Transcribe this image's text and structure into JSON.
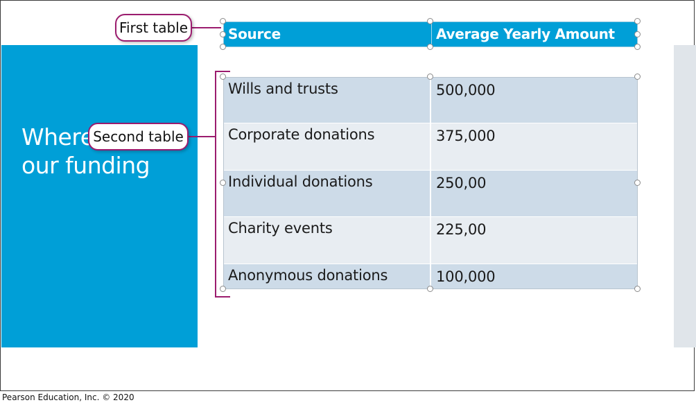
{
  "slide": {
    "title": "Where we get our funding"
  },
  "header_table": {
    "columns": [
      "Source",
      "Average Yearly Amount"
    ]
  },
  "data_table": {
    "rows": [
      {
        "source": "Wills and trusts",
        "amount": "500,000"
      },
      {
        "source": "Corporate donations",
        "amount": "375,000"
      },
      {
        "source": "Individual donations",
        "amount": "250,00"
      },
      {
        "source": "Charity events",
        "amount": "225,00"
      },
      {
        "source": "Anonymous donations",
        "amount": "100,000"
      }
    ]
  },
  "callouts": {
    "first_table": "First table",
    "second_table": "Second table"
  },
  "footer": {
    "copyright": "Pearson Education, Inc. © 2020"
  },
  "colors": {
    "accent_blue": "#009fd7",
    "callout_border": "#9b1c6e",
    "row_dark": "#cddbe8",
    "row_light": "#e8edf2"
  }
}
